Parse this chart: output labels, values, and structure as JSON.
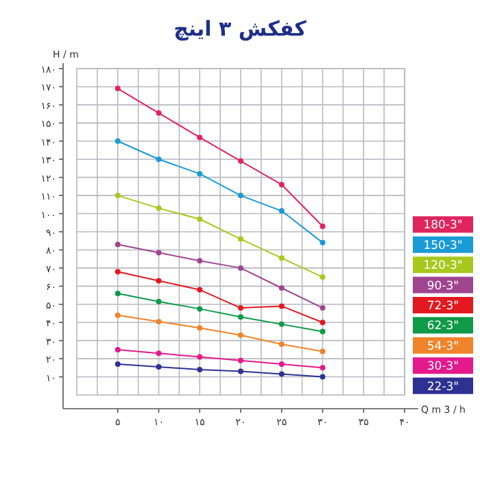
{
  "chart_data": {
    "type": "line",
    "title": "کفکش ۳ اینچ",
    "xlabel": "Q m 3 / h",
    "ylabel": "H / m",
    "marker": "circle",
    "grid": true,
    "legend": "bottom right",
    "x": [
      5,
      10,
      15,
      20,
      25,
      30
    ],
    "xlim": [
      0,
      40
    ],
    "ylim": [
      0,
      180
    ],
    "xticks": [
      {
        "value": 2.5,
        "label": null
      },
      {
        "value": 5,
        "label": "۵"
      },
      {
        "value": 7.5,
        "label": null
      },
      {
        "value": 10,
        "label": "۱۰"
      },
      {
        "value": 12.5,
        "label": null
      },
      {
        "value": 15,
        "label": "۱۵"
      },
      {
        "value": 17.5,
        "label": null
      },
      {
        "value": 20,
        "label": "۲۰"
      },
      {
        "value": 22.5,
        "label": null
      },
      {
        "value": 25,
        "label": "۲۵"
      },
      {
        "value": 27.5,
        "label": null
      },
      {
        "value": 30,
        "label": "۳۰"
      },
      {
        "value": 32.5,
        "label": null
      },
      {
        "value": 35,
        "label": "۳۵"
      },
      {
        "value": 37.5,
        "label": null
      },
      {
        "value": 40,
        "label": "۴۰"
      }
    ],
    "yticks": [
      {
        "value": 10,
        "label": "۱۰"
      },
      {
        "value": 20,
        "label": "۲۰"
      },
      {
        "value": 30,
        "label": "۳۰"
      },
      {
        "value": 40,
        "label": "۴۰"
      },
      {
        "value": 50,
        "label": "۵۰"
      },
      {
        "value": 60,
        "label": "۶۰"
      },
      {
        "value": 70,
        "label": "۷۰"
      },
      {
        "value": 80,
        "label": "۸۰"
      },
      {
        "value": 90,
        "label": "۹۰"
      },
      {
        "value": 100,
        "label": "۱۰۰"
      },
      {
        "value": 110,
        "label": "۱۱۰"
      },
      {
        "value": 120,
        "label": "۱۲۰"
      },
      {
        "value": 130,
        "label": "۱۳۰"
      },
      {
        "value": 140,
        "label": "۱۴۰"
      },
      {
        "value": 150,
        "label": "۱۵۰"
      },
      {
        "value": 160,
        "label": "۱۶۰"
      },
      {
        "value": 170,
        "label": "۱۷۰"
      },
      {
        "value": 180,
        "label": "۱۸۰"
      }
    ],
    "series": [
      {
        "name": "180-3\"",
        "color": "#e0245e",
        "values": [
          169,
          155.5,
          142,
          129,
          116,
          93
        ]
      },
      {
        "name": "150-3\"",
        "color": "#1a9ad6",
        "values": [
          140,
          130,
          122,
          110,
          101.5,
          84
        ]
      },
      {
        "name": "120-3\"",
        "color": "#a8c81e",
        "values": [
          110,
          103,
          97,
          86,
          75.5,
          65
        ]
      },
      {
        "name": "90-3\"",
        "color": "#a0458f",
        "values": [
          83,
          78.5,
          74,
          70,
          59,
          48
        ]
      },
      {
        "name": "72-3\"",
        "color": "#e3191f",
        "values": [
          68,
          63,
          58,
          48,
          49,
          40
        ]
      },
      {
        "name": "62-3\"",
        "color": "#0e9a47",
        "values": [
          56,
          51.5,
          47.5,
          43,
          39,
          35
        ]
      },
      {
        "name": "54-3\"",
        "color": "#f0842a",
        "values": [
          44,
          40.5,
          37,
          33,
          28,
          24
        ]
      },
      {
        "name": "30-3\"",
        "color": "#e4198c",
        "values": [
          25,
          23,
          21,
          19,
          17,
          15
        ]
      },
      {
        "name": "22-3\"",
        "color": "#2e3192",
        "values": [
          17,
          15.5,
          14,
          13,
          11.5,
          10
        ]
      }
    ]
  }
}
